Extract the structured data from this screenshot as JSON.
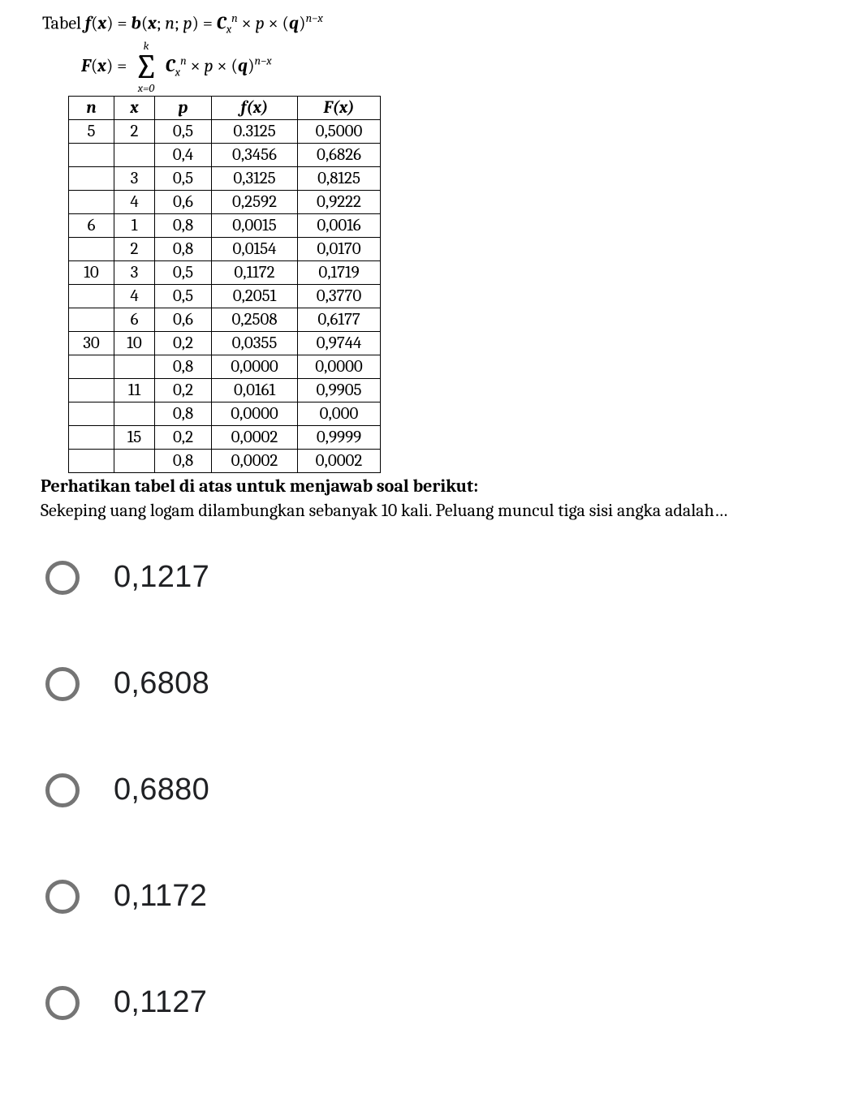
{
  "formula": {
    "line1_prefix": "Tabel ",
    "line2_prefix": "F",
    "sigma_top": "k",
    "sigma_bottom": "x=0"
  },
  "table": {
    "headers": {
      "n": "n",
      "x": "x",
      "p": "p",
      "fx": "f(x)",
      "Fx": "F(x)"
    },
    "rows": [
      {
        "n": "5",
        "x": "2",
        "p": "0,5",
        "fx": "0.3125",
        "Fx": "0,5000"
      },
      {
        "n": "",
        "x": "",
        "p": "0,4",
        "fx": "0,3456",
        "Fx": "0,6826"
      },
      {
        "n": "",
        "x": "3",
        "p": "0,5",
        "fx": "0,3125",
        "Fx": "0,8125"
      },
      {
        "n": "",
        "x": "4",
        "p": "0,6",
        "fx": "0,2592",
        "Fx": "0,9222"
      },
      {
        "n": "6",
        "x": "1",
        "p": "0,8",
        "fx": "0,0015",
        "Fx": "0,0016"
      },
      {
        "n": "",
        "x": "2",
        "p": "0,8",
        "fx": "0,0154",
        "Fx": "0,0170"
      },
      {
        "n": "10",
        "x": "3",
        "p": "0,5",
        "fx": "0,1172",
        "Fx": "0,1719"
      },
      {
        "n": "",
        "x": "4",
        "p": "0,5",
        "fx": "0,2051",
        "Fx": "0,3770"
      },
      {
        "n": "",
        "x": "6",
        "p": "0,6",
        "fx": "0,2508",
        "Fx": "0,6177"
      },
      {
        "n": "30",
        "x": "10",
        "p": "0,2",
        "fx": "0,0355",
        "Fx": "0,9744"
      },
      {
        "n": "",
        "x": "",
        "p": "0,8",
        "fx": "0,0000",
        "Fx": "0,0000"
      },
      {
        "n": "",
        "x": "11",
        "p": "0,2",
        "fx": "0,0161",
        "Fx": "0,9905"
      },
      {
        "n": "",
        "x": "",
        "p": "0,8",
        "fx": "0,0000",
        "Fx": "0,000"
      },
      {
        "n": "",
        "x": "15",
        "p": "0,2",
        "fx": "0,0002",
        "Fx": "0,9999"
      },
      {
        "n": "",
        "x": "",
        "p": "0,8",
        "fx": "0,0002",
        "Fx": "0,0002"
      }
    ]
  },
  "instruction": {
    "line1": "Perhatikan tabel di atas  untuk menjawab soal berikut:",
    "line2": "Sekeping uang logam dilambungkan sebanyak 10 kali.  Peluang muncul tiga sisi angka adalah…"
  },
  "options": [
    "0,1217",
    "0,6808",
    "0,6880",
    "0,1172",
    "0,1127"
  ]
}
